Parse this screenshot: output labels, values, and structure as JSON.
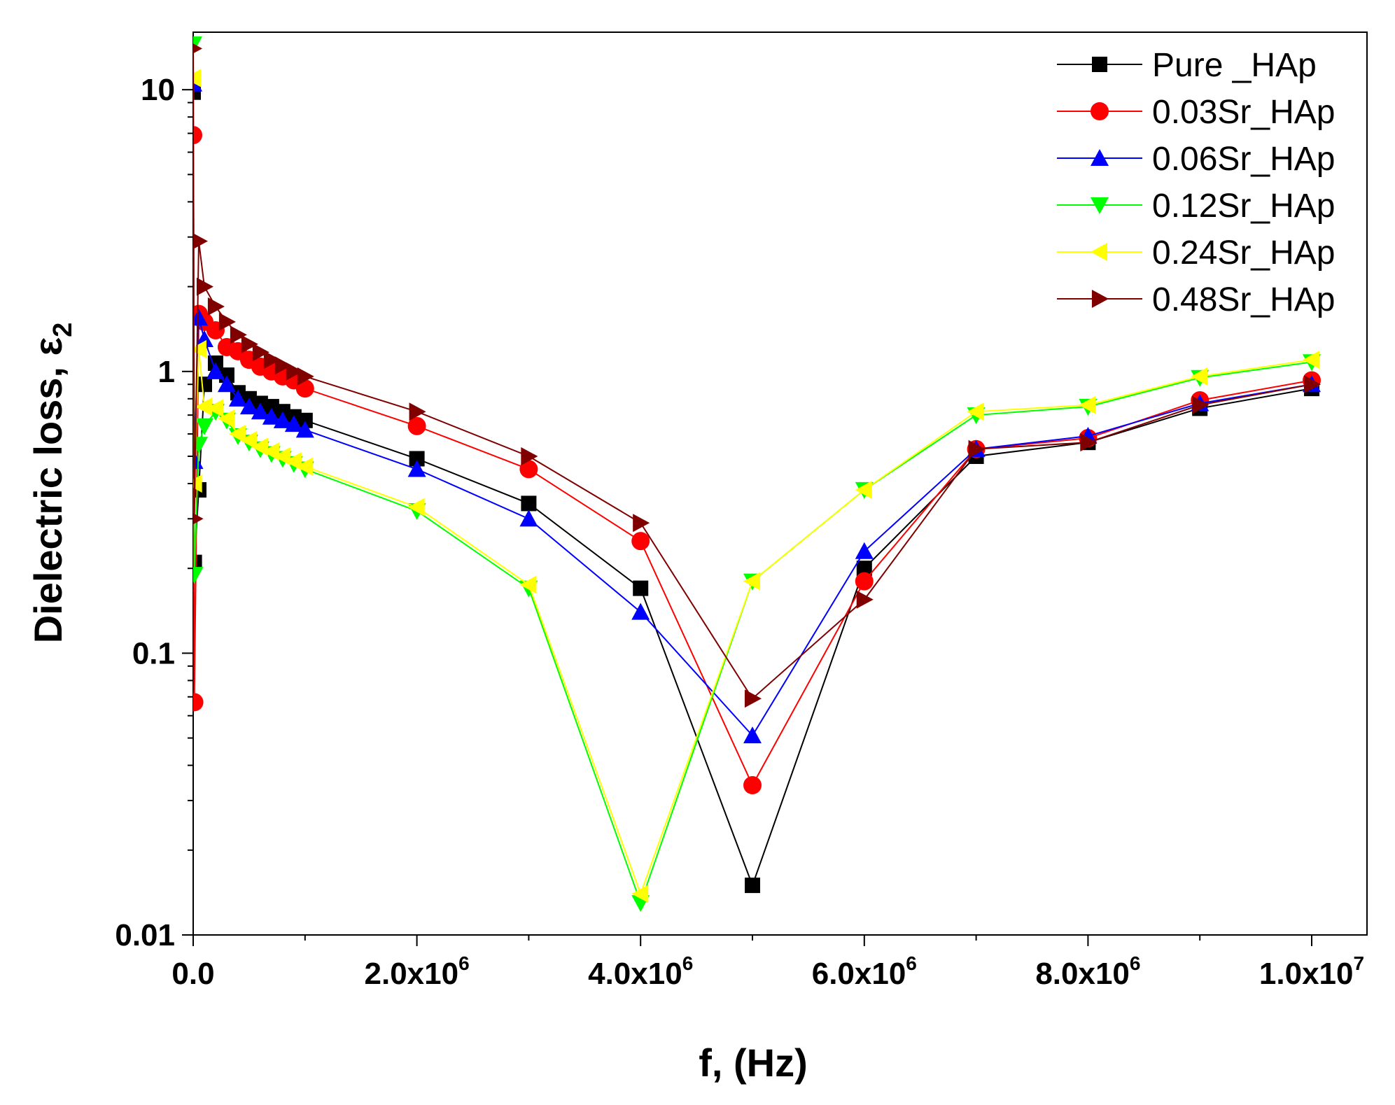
{
  "chart_data": {
    "type": "line",
    "title": "",
    "xlabel": "f, (Hz)",
    "ylabel": "Dielectric loss, ε",
    "ylabel_subscript": "2",
    "xscale": "linear",
    "yscale": "log",
    "xlim": [
      0,
      10500000
    ],
    "ylim": [
      0.01,
      16
    ],
    "x_ticks": [
      {
        "value": 0,
        "label": "0.0",
        "exp": ""
      },
      {
        "value": 2000000,
        "label": "2.0x10",
        "exp": "6"
      },
      {
        "value": 4000000,
        "label": "4.0x10",
        "exp": "6"
      },
      {
        "value": 6000000,
        "label": "6.0x10",
        "exp": "6"
      },
      {
        "value": 8000000,
        "label": "8.0x10",
        "exp": "6"
      },
      {
        "value": 10000000,
        "label": "1.0x10",
        "exp": "7"
      }
    ],
    "y_ticks": [
      {
        "value": 0.01,
        "label": "0.01"
      },
      {
        "value": 0.1,
        "label": "0.1"
      },
      {
        "value": 1,
        "label": "1"
      },
      {
        "value": 10,
        "label": "10"
      }
    ],
    "grid": false,
    "legend_position": "top-right",
    "series": [
      {
        "name": "Pure _HAp",
        "color": "#000000",
        "marker": "square",
        "x": [
          100,
          10000,
          50000,
          100000,
          200000,
          300000,
          400000,
          500000,
          600000,
          700000,
          800000,
          900000,
          1000000,
          2000000,
          3000000,
          4000000,
          5000000,
          6000000,
          7000000,
          8000000,
          9000000,
          10000000
        ],
        "y": [
          9.8,
          0.21,
          0.38,
          0.9,
          1.07,
          0.97,
          0.84,
          0.8,
          0.77,
          0.75,
          0.72,
          0.69,
          0.67,
          0.49,
          0.34,
          0.17,
          0.015,
          0.2,
          0.5,
          0.56,
          0.74,
          0.87
        ]
      },
      {
        "name": "0.03Sr_HAp",
        "color": "#ff0000",
        "marker": "circle",
        "x": [
          100,
          10000,
          50000,
          100000,
          200000,
          300000,
          400000,
          500000,
          600000,
          700000,
          800000,
          900000,
          1000000,
          2000000,
          3000000,
          4000000,
          5000000,
          6000000,
          7000000,
          8000000,
          9000000,
          10000000
        ],
        "y": [
          6.9,
          0.067,
          1.6,
          1.5,
          1.4,
          1.22,
          1.18,
          1.1,
          1.04,
          1.0,
          0.96,
          0.93,
          0.87,
          0.64,
          0.45,
          0.25,
          0.034,
          0.18,
          0.53,
          0.58,
          0.79,
          0.93
        ]
      },
      {
        "name": "0.06Sr_HAp",
        "color": "#0000ff",
        "marker": "triangle-up",
        "x": [
          100,
          10000,
          50000,
          100000,
          200000,
          300000,
          400000,
          500000,
          600000,
          700000,
          800000,
          900000,
          1000000,
          2000000,
          3000000,
          4000000,
          5000000,
          6000000,
          7000000,
          8000000,
          9000000,
          10000000
        ],
        "y": [
          10.5,
          0.48,
          1.55,
          1.3,
          1.0,
          0.9,
          0.8,
          0.75,
          0.72,
          0.69,
          0.67,
          0.65,
          0.62,
          0.45,
          0.3,
          0.14,
          0.051,
          0.23,
          0.53,
          0.59,
          0.77,
          0.9
        ]
      },
      {
        "name": "0.12Sr_HAp",
        "color": "#00ff00",
        "marker": "triangle-down",
        "x": [
          100,
          10000,
          50000,
          100000,
          200000,
          300000,
          400000,
          500000,
          600000,
          700000,
          800000,
          900000,
          1000000,
          2000000,
          3000000,
          4000000,
          5000000,
          6000000,
          7000000,
          8000000,
          9000000,
          10000000
        ],
        "y": [
          14.5,
          0.19,
          0.55,
          0.64,
          0.72,
          0.67,
          0.59,
          0.56,
          0.53,
          0.51,
          0.49,
          0.47,
          0.45,
          0.32,
          0.17,
          0.013,
          0.18,
          0.38,
          0.7,
          0.75,
          0.95,
          1.08
        ]
      },
      {
        "name": "0.24Sr_HAp",
        "color": "#ffff00",
        "marker": "triangle-left",
        "x": [
          100,
          10000,
          50000,
          100000,
          200000,
          300000,
          400000,
          500000,
          600000,
          700000,
          800000,
          900000,
          1000000,
          2000000,
          3000000,
          4000000,
          5000000,
          6000000,
          7000000,
          8000000,
          9000000,
          10000000
        ],
        "y": [
          11.0,
          0.4,
          1.2,
          0.75,
          0.74,
          0.68,
          0.6,
          0.57,
          0.54,
          0.52,
          0.5,
          0.48,
          0.46,
          0.33,
          0.175,
          0.014,
          0.18,
          0.38,
          0.72,
          0.76,
          0.96,
          1.1
        ]
      },
      {
        "name": "0.48Sr_HAp",
        "color": "#800000",
        "marker": "triangle-right",
        "x": [
          100,
          10000,
          50000,
          100000,
          200000,
          300000,
          400000,
          500000,
          600000,
          700000,
          800000,
          900000,
          1000000,
          2000000,
          3000000,
          4000000,
          5000000,
          6000000,
          7000000,
          8000000,
          9000000,
          10000000
        ],
        "y": [
          14.0,
          0.3,
          2.9,
          2.0,
          1.7,
          1.5,
          1.35,
          1.25,
          1.17,
          1.1,
          1.05,
          1.0,
          0.96,
          0.72,
          0.5,
          0.29,
          0.069,
          0.155,
          0.53,
          0.56,
          0.76,
          0.9
        ]
      }
    ]
  }
}
